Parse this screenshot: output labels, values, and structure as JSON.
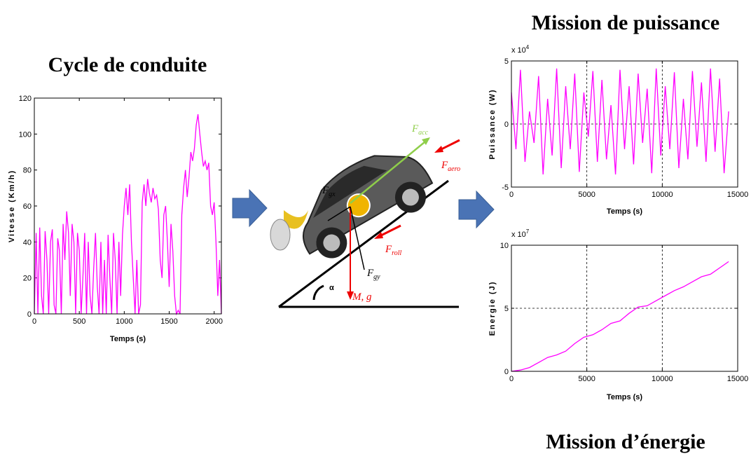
{
  "chart_data": [
    {
      "type": "line",
      "title": "Cycle de conduite",
      "x_label": "Temps (s)",
      "y_label": "Vitesse (Km/h)",
      "color": "#ff00ff",
      "grid": false,
      "xlim": [
        0,
        2080
      ],
      "xticks": [
        0,
        500,
        1000,
        1500,
        2000
      ],
      "ylim": [
        0,
        120
      ],
      "yticks": [
        0,
        20,
        40,
        60,
        80,
        100,
        120
      ],
      "x": [
        0,
        20,
        40,
        60,
        80,
        100,
        120,
        140,
        160,
        180,
        200,
        220,
        240,
        260,
        280,
        300,
        320,
        340,
        360,
        380,
        400,
        420,
        440,
        460,
        480,
        500,
        520,
        540,
        560,
        580,
        600,
        620,
        640,
        660,
        680,
        700,
        720,
        740,
        760,
        780,
        800,
        820,
        840,
        860,
        880,
        900,
        920,
        940,
        960,
        980,
        1000,
        1020,
        1040,
        1060,
        1080,
        1100,
        1120,
        1140,
        1160,
        1180,
        1200,
        1220,
        1240,
        1260,
        1280,
        1300,
        1320,
        1340,
        1360,
        1380,
        1400,
        1420,
        1440,
        1460,
        1480,
        1500,
        1520,
        1540,
        1560,
        1580,
        1600,
        1620,
        1640,
        1660,
        1680,
        1700,
        1720,
        1740,
        1760,
        1780,
        1800,
        1820,
        1840,
        1860,
        1880,
        1900,
        1920,
        1940,
        1960,
        1980,
        2000,
        2020,
        2040,
        2060,
        2080
      ],
      "values": [
        0,
        45,
        0,
        48,
        10,
        0,
        46,
        30,
        0,
        40,
        47,
        5,
        0,
        42,
        35,
        0,
        50,
        30,
        57,
        45,
        10,
        50,
        40,
        0,
        45,
        35,
        0,
        20,
        45,
        0,
        40,
        10,
        0,
        25,
        45,
        15,
        0,
        40,
        0,
        30,
        0,
        44,
        20,
        0,
        45,
        30,
        0,
        40,
        10,
        44,
        60,
        70,
        55,
        72,
        40,
        20,
        0,
        30,
        0,
        5,
        62,
        72,
        60,
        75,
        67,
        62,
        70,
        64,
        66,
        58,
        30,
        20,
        55,
        60,
        40,
        15,
        50,
        35,
        10,
        0,
        2,
        0,
        55,
        70,
        80,
        65,
        76,
        90,
        85,
        92,
        105,
        111,
        100,
        90,
        82,
        85,
        80,
        84,
        60,
        55,
        62,
        40,
        10,
        30,
        0
      ]
    },
    {
      "type": "line",
      "title": "Mission de puissance",
      "x_label": "Temps (s)",
      "y_label": "Puissance (W)",
      "y_multiplier": "x 10",
      "y_multiplier_exponent": "4",
      "color": "#ff00ff",
      "grid": true,
      "xlim": [
        0,
        15000
      ],
      "xticks": [
        0,
        5000,
        10000,
        15000
      ],
      "ylim": [
        -5,
        5
      ],
      "yticks": [
        -5,
        0,
        5
      ],
      "x": [
        0,
        300,
        600,
        900,
        1200,
        1500,
        1800,
        2100,
        2400,
        2700,
        3000,
        3300,
        3600,
        3900,
        4200,
        4500,
        4800,
        5100,
        5400,
        5700,
        6000,
        6300,
        6600,
        6900,
        7200,
        7500,
        7800,
        8100,
        8400,
        8700,
        9000,
        9300,
        9600,
        9900,
        10200,
        10500,
        10800,
        11100,
        11400,
        11700,
        12000,
        12300,
        12600,
        12900,
        13200,
        13500,
        13800,
        14100,
        14400
      ],
      "values": [
        2.5,
        -2,
        4.3,
        -3,
        1,
        -1.5,
        3.8,
        -4,
        2,
        -2.5,
        4.4,
        -3.5,
        3,
        -2,
        4,
        -3.8,
        2.5,
        -1,
        4.2,
        -3,
        3.5,
        -2.8,
        1.5,
        -4,
        4.3,
        -2,
        3,
        -3.2,
        4,
        -1.5,
        2.8,
        -3.9,
        4.4,
        -2.5,
        3,
        -2,
        4.1,
        -3.5,
        2,
        -2.8,
        4.2,
        -1.8,
        3.3,
        -3,
        4.4,
        -2.2,
        3.6,
        -3.9,
        1
      ]
    },
    {
      "type": "line",
      "title": "Mission d’énergie",
      "x_label": "Temps (s)",
      "y_label": "Energie (J)",
      "y_multiplier": "x 10",
      "y_multiplier_exponent": "7",
      "color": "#ff00ff",
      "grid": true,
      "xlim": [
        0,
        15000
      ],
      "xticks": [
        0,
        5000,
        10000,
        15000
      ],
      "ylim": [
        0,
        10
      ],
      "yticks": [
        0,
        5,
        10
      ],
      "x": [
        0,
        600,
        1200,
        1800,
        2400,
        3000,
        3600,
        4200,
        4800,
        5400,
        6000,
        6600,
        7200,
        7800,
        8400,
        9000,
        9600,
        10200,
        10800,
        11400,
        12000,
        12600,
        13200,
        13800,
        14400
      ],
      "values": [
        0,
        0.1,
        0.3,
        0.7,
        1.1,
        1.3,
        1.6,
        2.2,
        2.7,
        2.9,
        3.3,
        3.8,
        4.0,
        4.6,
        5.1,
        5.2,
        5.6,
        6.0,
        6.4,
        6.7,
        7.1,
        7.5,
        7.7,
        8.2,
        8.7
      ]
    }
  ],
  "diagram": {
    "labels": {
      "acc": {
        "main": "F",
        "sub": "acc"
      },
      "aero": {
        "main": "F",
        "sub": "aero"
      },
      "gx": {
        "main": "F",
        "sub": "gx"
      },
      "gy": {
        "main": "F",
        "sub": "gy"
      },
      "roll": {
        "main": "F",
        "sub": "roll"
      },
      "weight": "M, g",
      "angle": "α"
    }
  }
}
